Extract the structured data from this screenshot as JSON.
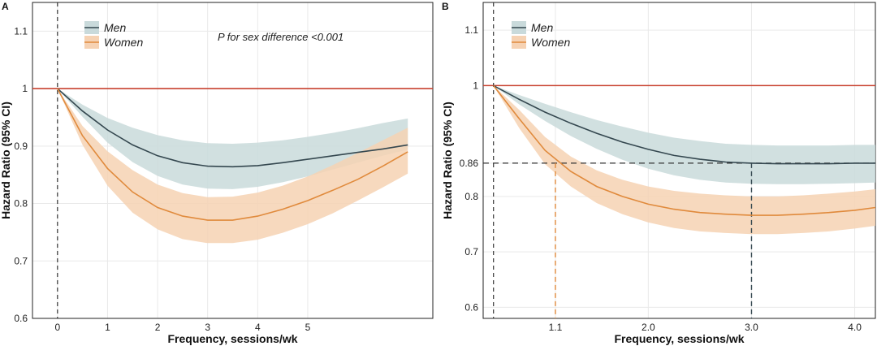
{
  "colors": {
    "men_line": "#34474f",
    "men_band": "#c9dadb",
    "women_line": "#e08a3c",
    "women_band": "#f6d2b3",
    "reference": "#c8412e",
    "grid": "#e9e9e9",
    "dash": "#333333"
  },
  "chart_data": [
    {
      "type": "line",
      "panel_label": "A",
      "xlabel": "Frequency, sessions/wk",
      "ylabel": "Hazard Ratio (95% CI)",
      "xlim": [
        -0.5,
        7.5
      ],
      "ylim": [
        0.6,
        1.15
      ],
      "xticks": [
        0,
        1,
        2,
        3,
        4,
        5
      ],
      "yticks": [
        0.6,
        0.7,
        0.8,
        0.9,
        1,
        1.1
      ],
      "ytick_labels": [
        "0.6",
        "0.7",
        "0.8",
        "0.9",
        "1",
        "1.1"
      ],
      "grid": true,
      "reference_line": 1,
      "annotation": "P for sex difference <0.001",
      "legend": {
        "position": "top-left",
        "entries": [
          "Men",
          "Women"
        ]
      },
      "series": [
        {
          "name": "Men",
          "x": [
            0,
            0.5,
            1,
            1.5,
            2,
            2.5,
            3,
            3.5,
            4,
            4.5,
            5,
            5.5,
            6,
            6.5,
            7
          ],
          "y": [
            1.0,
            0.961,
            0.928,
            0.902,
            0.883,
            0.871,
            0.865,
            0.864,
            0.866,
            0.871,
            0.877,
            0.883,
            0.889,
            0.895,
            0.902
          ],
          "lower": [
            1.0,
            0.951,
            0.906,
            0.872,
            0.848,
            0.833,
            0.826,
            0.825,
            0.829,
            0.837,
            0.847,
            0.859,
            0.871,
            0.883,
            0.894
          ],
          "upper": [
            1.0,
            0.972,
            0.949,
            0.932,
            0.919,
            0.91,
            0.905,
            0.904,
            0.906,
            0.91,
            0.916,
            0.923,
            0.931,
            0.94,
            0.948
          ]
        },
        {
          "name": "Women",
          "x": [
            0,
            0.5,
            1,
            1.5,
            2,
            2.5,
            3,
            3.5,
            4,
            4.5,
            5,
            5.5,
            6,
            6.5,
            7
          ],
          "y": [
            1.0,
            0.918,
            0.861,
            0.82,
            0.793,
            0.778,
            0.771,
            0.771,
            0.778,
            0.79,
            0.805,
            0.823,
            0.842,
            0.865,
            0.89
          ],
          "lower": [
            1.0,
            0.902,
            0.831,
            0.784,
            0.755,
            0.738,
            0.731,
            0.731,
            0.737,
            0.749,
            0.764,
            0.783,
            0.805,
            0.828,
            0.852
          ],
          "upper": [
            1.0,
            0.935,
            0.891,
            0.858,
            0.833,
            0.818,
            0.811,
            0.812,
            0.819,
            0.831,
            0.847,
            0.867,
            0.888,
            0.91,
            0.932
          ]
        }
      ]
    },
    {
      "type": "line",
      "panel_label": "B",
      "xlabel": "Frequency, sessions/wk",
      "ylabel": "Hazard Ratio (95% CI)",
      "xlim": [
        0.4,
        4.2
      ],
      "ylim": [
        0.58,
        1.15
      ],
      "xticks": [
        1.1,
        2.0,
        3.0,
        4.0
      ],
      "xtick_labels": [
        "1.1",
        "2.0",
        "3.0",
        "4.0"
      ],
      "yticks": [
        0.6,
        0.7,
        0.8,
        0.86,
        1,
        1.1
      ],
      "ytick_labels": [
        "0.6",
        "0.7",
        "0.8",
        "0.86",
        "1",
        "1.1"
      ],
      "grid": true,
      "reference_line": 1,
      "legend": {
        "position": "top-left",
        "entries": [
          "Men",
          "Women"
        ]
      },
      "guides": [
        {
          "x": 1.1,
          "y": 0.86,
          "color": "women_line"
        },
        {
          "x": 3.0,
          "y": 0.86,
          "color": "men_line"
        }
      ],
      "series": [
        {
          "name": "Men",
          "x": [
            0.5,
            0.75,
            1.0,
            1.25,
            1.5,
            1.75,
            2.0,
            2.25,
            2.5,
            2.75,
            3.0,
            3.25,
            3.5,
            3.75,
            4.0,
            4.2
          ],
          "y": [
            1.0,
            0.975,
            0.952,
            0.932,
            0.914,
            0.898,
            0.885,
            0.874,
            0.867,
            0.862,
            0.86,
            0.859,
            0.859,
            0.859,
            0.86,
            0.86
          ],
          "lower": [
            1.0,
            0.966,
            0.936,
            0.909,
            0.886,
            0.866,
            0.85,
            0.838,
            0.83,
            0.825,
            0.823,
            0.822,
            0.822,
            0.823,
            0.824,
            0.825
          ],
          "upper": [
            1.0,
            0.983,
            0.967,
            0.952,
            0.938,
            0.926,
            0.915,
            0.906,
            0.9,
            0.895,
            0.893,
            0.892,
            0.892,
            0.892,
            0.893,
            0.893
          ]
        },
        {
          "name": "Women",
          "x": [
            0.5,
            0.75,
            1.0,
            1.25,
            1.5,
            1.75,
            2.0,
            2.25,
            2.5,
            2.75,
            3.0,
            3.25,
            3.5,
            3.75,
            4.0,
            4.2
          ],
          "y": [
            1.0,
            0.94,
            0.883,
            0.845,
            0.818,
            0.8,
            0.786,
            0.777,
            0.771,
            0.768,
            0.766,
            0.766,
            0.768,
            0.771,
            0.775,
            0.78
          ],
          "lower": [
            1.0,
            0.923,
            0.858,
            0.818,
            0.788,
            0.768,
            0.753,
            0.743,
            0.737,
            0.734,
            0.732,
            0.732,
            0.734,
            0.737,
            0.742,
            0.747
          ],
          "upper": [
            1.0,
            0.956,
            0.907,
            0.872,
            0.847,
            0.83,
            0.818,
            0.81,
            0.805,
            0.802,
            0.8,
            0.8,
            0.802,
            0.805,
            0.809,
            0.813
          ]
        }
      ]
    }
  ]
}
